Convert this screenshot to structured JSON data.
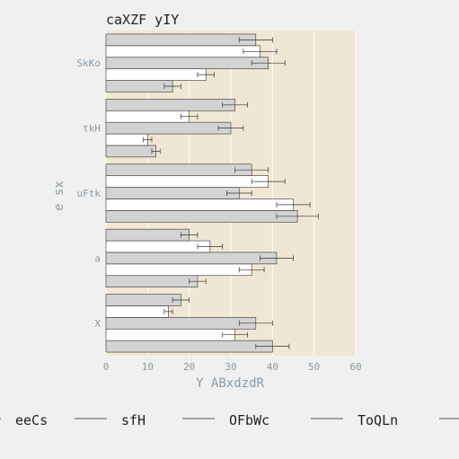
{
  "chart_data": {
    "type": "bar",
    "orientation": "horizontal",
    "title": "caXZF yIY",
    "xlabel": "Y ABxdzdR",
    "ylabel": "e sx",
    "xlim": [
      0,
      60
    ],
    "xticks": [
      0,
      10,
      20,
      30,
      40,
      50,
      60
    ],
    "grid": true,
    "legend_position": "bottom",
    "plot_background": "#efe6d4",
    "categories": [
      "X",
      "a",
      "uFtk",
      "tkH",
      "SkKo"
    ],
    "series": [
      {
        "name": "eeCs",
        "color": "#d3d3d3",
        "values": [
          40,
          22,
          46,
          12,
          16
        ],
        "errors": [
          4,
          2,
          5,
          1,
          2
        ]
      },
      {
        "name": "sfH",
        "color": "#ffffff",
        "values": [
          31,
          35,
          45,
          10,
          24
        ],
        "errors": [
          3,
          3,
          4,
          1,
          2
        ]
      },
      {
        "name": "OFbWc",
        "color": "#d3d3d3",
        "values": [
          36,
          41,
          32,
          30,
          39
        ],
        "errors": [
          4,
          4,
          3,
          3,
          4
        ]
      },
      {
        "name": "ToQLn",
        "color": "#ffffff",
        "values": [
          15,
          25,
          39,
          20,
          37
        ],
        "errors": [
          1,
          3,
          4,
          2,
          4
        ]
      },
      {
        "name": "",
        "color": "#d3d3d3",
        "values": [
          18,
          20,
          35,
          31,
          36
        ],
        "errors": [
          2,
          2,
          4,
          3,
          4
        ]
      }
    ]
  }
}
